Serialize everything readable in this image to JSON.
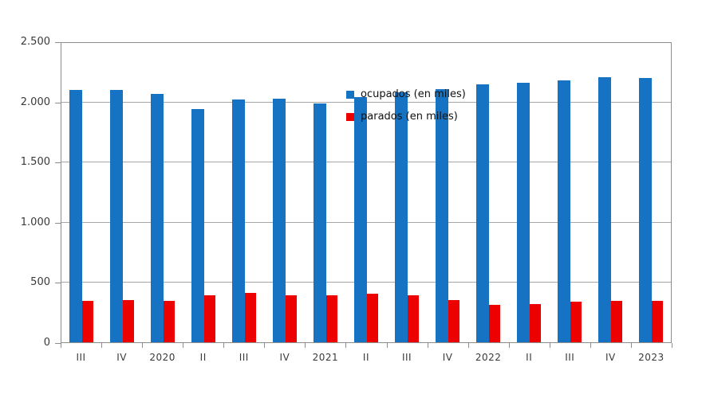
{
  "chart_data": {
    "type": "bar",
    "title": "",
    "categories": [
      "III",
      "IV",
      "2020",
      "II",
      "III",
      "IV",
      "2021",
      "II",
      "III",
      "IV",
      "2022",
      "II",
      "III",
      "IV",
      "2023"
    ],
    "series": [
      {
        "name": "ocupados (en miles)",
        "color": "#1673C4",
        "values": [
          2105,
          2105,
          2075,
          1945,
          2030,
          2035,
          1995,
          2050,
          2085,
          2115,
          2155,
          2170,
          2190,
          2215,
          2205
        ]
      },
      {
        "name": "parados (en miles)",
        "color": "#ED0000",
        "values": [
          345,
          350,
          345,
          390,
          415,
          395,
          390,
          405,
          395,
          350,
          310,
          320,
          340,
          345,
          345
        ]
      }
    ],
    "xlabel": "",
    "ylabel": "",
    "ylim": [
      0,
      2500
    ],
    "yticks": [
      {
        "value": 0,
        "label": "0"
      },
      {
        "value": 500,
        "label": "500"
      },
      {
        "value": 1000,
        "label": "1.000"
      },
      {
        "value": 1500,
        "label": "1.500"
      },
      {
        "value": 2000,
        "label": "2.000"
      },
      {
        "value": 2500,
        "label": "2.500"
      }
    ],
    "grid": true,
    "legend_position": "top-center-inside",
    "colors": {
      "gridline": "#A6A6A6",
      "axis_border": "#8C8C8C",
      "tick": "#8C8C8C",
      "label_text": "#3A3A3A",
      "legend_text": "#111111",
      "background": "#FFFFFF"
    }
  }
}
